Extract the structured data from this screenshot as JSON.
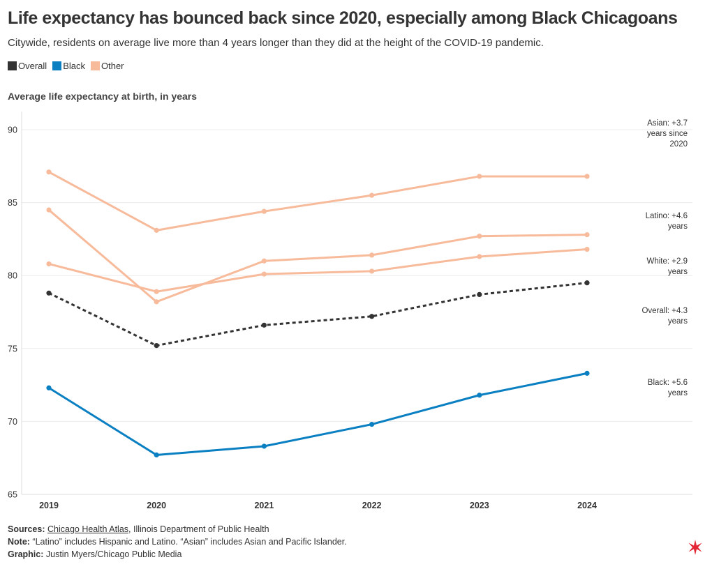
{
  "title": "Life expectancy has bounced back since 2020, especially among Black Chicagoans",
  "subtitle": "Citywide, residents on average live more than 4 years longer than they did at the height of the COVID-19 pandemic.",
  "legend": [
    {
      "label": "Overall",
      "color": "#333333"
    },
    {
      "label": "Black",
      "color": "#0a7fc2"
    },
    {
      "label": "Other",
      "color": "#f7bb9b"
    }
  ],
  "chart_heading": "Average life expectancy at birth, in years",
  "chart_data": {
    "type": "line",
    "title": "Average life expectancy at birth, in years",
    "xlabel": "",
    "ylabel": "",
    "categories": [
      "2019",
      "2020",
      "2021",
      "2022",
      "2023",
      "2024"
    ],
    "ylim": [
      65,
      91
    ],
    "yticks": [
      65,
      70,
      75,
      80,
      85,
      90
    ],
    "grid": true,
    "series": [
      {
        "name": "Asian",
        "group": "Other",
        "color": "#f7bb9b",
        "dashed": false,
        "values": [
          87.1,
          83.1,
          84.4,
          85.5,
          86.8,
          86.8
        ],
        "annotation": [
          "Asian: +3.7",
          "years since",
          "2020"
        ]
      },
      {
        "name": "Latino",
        "group": "Other",
        "color": "#f7bb9b",
        "dashed": false,
        "values": [
          84.5,
          78.2,
          81.0,
          81.4,
          82.7,
          82.8
        ],
        "annotation": [
          "Latino: +4.6",
          "years"
        ]
      },
      {
        "name": "White",
        "group": "Other",
        "color": "#f7bb9b",
        "dashed": false,
        "values": [
          80.8,
          78.9,
          80.1,
          80.3,
          81.3,
          81.8
        ],
        "annotation": [
          "White: +2.9",
          "years"
        ]
      },
      {
        "name": "Overall",
        "group": "Overall",
        "color": "#333333",
        "dashed": true,
        "values": [
          78.8,
          75.2,
          76.6,
          77.2,
          78.7,
          79.5
        ],
        "annotation": [
          "Overall: +4.3",
          "years"
        ]
      },
      {
        "name": "Black",
        "group": "Black",
        "color": "#0a7fc2",
        "dashed": false,
        "values": [
          72.3,
          67.7,
          68.3,
          69.8,
          71.8,
          73.3
        ],
        "annotation": [
          "Black: +5.6",
          "years"
        ]
      }
    ]
  },
  "footer": {
    "sources_label": "Sources:",
    "sources_link": "Chicago Health Atlas",
    "sources_rest": ", Illinois Department of Public Health",
    "note_label": "Note:",
    "note_text": " “Latino” includes Hispanic and Latino. “Asian” includes Asian and Pacific Islander.",
    "graphic_label": "Graphic:",
    "graphic_text": " Justin Myers/Chicago Public Media"
  },
  "star_color": "#e32636"
}
